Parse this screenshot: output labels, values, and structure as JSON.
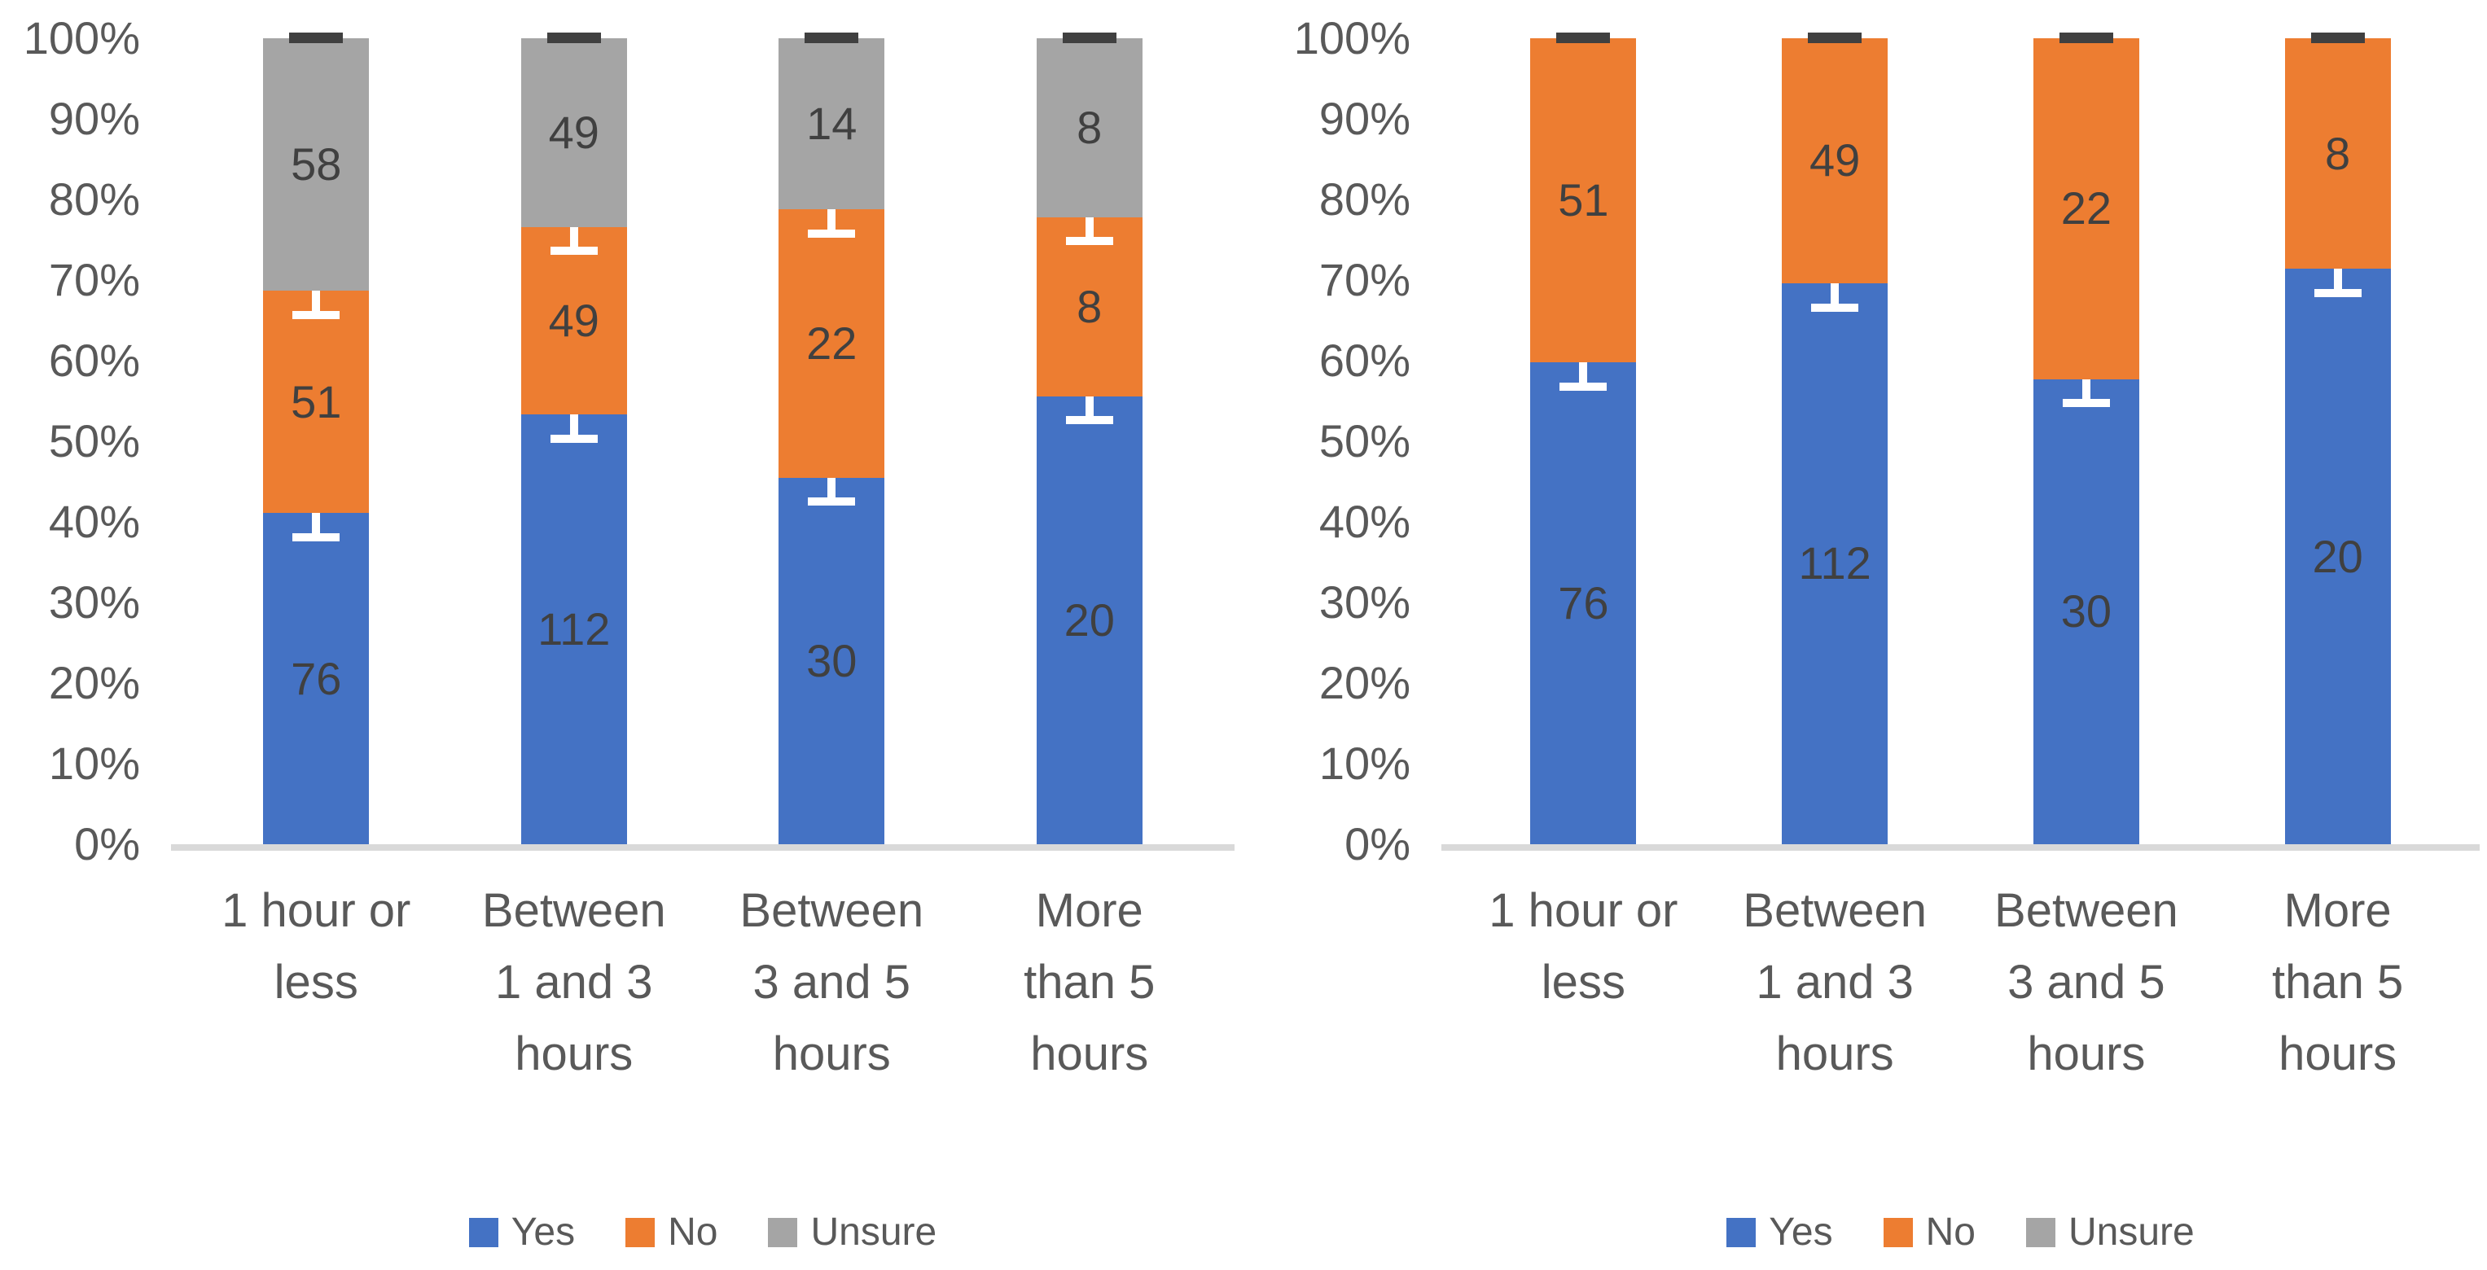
{
  "colors": {
    "yes": "#4472C4",
    "no": "#ED7D31",
    "unsure": "#A5A5A5",
    "axis_line": "#D9D9D9",
    "tick_text": "#595959",
    "data_label_text": "#404040",
    "error_bar": "#FFFFFF",
    "top_cap": "#404040"
  },
  "y_axis": {
    "ticks": [
      "0%",
      "10%",
      "20%",
      "30%",
      "40%",
      "50%",
      "60%",
      "70%",
      "80%",
      "90%",
      "100%"
    ],
    "min": 0,
    "max": 100
  },
  "categories": {
    "labels": [
      "1 hour or less",
      "Between 1 and 3 hours",
      "Between 3 and 5 hours",
      "More than 5 hours"
    ],
    "label_lines": [
      [
        "1 hour or",
        "less"
      ],
      [
        "Between",
        "1 and 3",
        "hours"
      ],
      [
        "Between",
        "3 and 5",
        "hours"
      ],
      [
        "More",
        "than 5",
        "hours"
      ]
    ]
  },
  "legend": {
    "items": [
      {
        "label": "Yes",
        "color_key": "yes"
      },
      {
        "label": "No",
        "color_key": "no"
      },
      {
        "label": "Unsure",
        "color_key": "unsure"
      }
    ]
  },
  "chart_data": [
    {
      "id": "left",
      "type": "bar",
      "subtype": "100-percent-stacked-column",
      "title": "",
      "xlabel": "",
      "ylabel": "",
      "ylim": [
        0,
        100
      ],
      "grid": false,
      "legend_position": "bottom",
      "categories": [
        "1 hour or less",
        "Between 1 and 3 hours",
        "Between 3 and 5 hours",
        "More than 5 hours"
      ],
      "series": [
        {
          "name": "Yes",
          "color_key": "yes",
          "values": [
            76,
            112,
            30,
            20
          ],
          "percent": [
            41.1,
            53.3,
            45.5,
            55.6
          ],
          "show_labels": true
        },
        {
          "name": "No",
          "color_key": "no",
          "values": [
            51,
            49,
            22,
            8
          ],
          "percent": [
            27.6,
            23.3,
            33.3,
            22.2
          ],
          "show_labels": true
        },
        {
          "name": "Unsure",
          "color_key": "unsure",
          "values": [
            58,
            49,
            14,
            8
          ],
          "percent": [
            31.4,
            23.3,
            21.2,
            22.2
          ],
          "show_labels": true
        }
      ],
      "error_bars": {
        "half_pct": 3.5,
        "internal_boundaries_pct": [
          [
            41.1,
            68.6
          ],
          [
            53.3,
            76.7
          ],
          [
            45.5,
            78.8
          ],
          [
            55.6,
            77.8
          ]
        ],
        "top_cap_at_pct": 100
      }
    },
    {
      "id": "right",
      "type": "bar",
      "subtype": "100-percent-stacked-column",
      "title": "",
      "xlabel": "",
      "ylabel": "",
      "ylim": [
        0,
        100
      ],
      "grid": false,
      "legend_position": "bottom",
      "categories": [
        "1 hour or less",
        "Between 1 and 3 hours",
        "Between 3 and 5 hours",
        "More than 5 hours"
      ],
      "series": [
        {
          "name": "Yes",
          "color_key": "yes",
          "values": [
            76,
            112,
            30,
            20
          ],
          "percent": [
            59.8,
            69.6,
            57.7,
            71.4
          ],
          "show_labels": true
        },
        {
          "name": "No",
          "color_key": "no",
          "values": [
            51,
            49,
            22,
            8
          ],
          "percent": [
            40.2,
            30.4,
            42.3,
            28.6
          ],
          "show_labels": true
        },
        {
          "name": "Unsure",
          "color_key": "unsure",
          "values": [
            0,
            0,
            0,
            0
          ],
          "percent": [
            0,
            0,
            0,
            0
          ],
          "show_labels": false
        }
      ],
      "error_bars": {
        "half_pct": 3.5,
        "internal_boundaries_pct": [
          [
            59.8
          ],
          [
            69.6
          ],
          [
            57.7
          ],
          [
            71.4
          ]
        ],
        "top_cap_at_pct": 100
      }
    }
  ]
}
